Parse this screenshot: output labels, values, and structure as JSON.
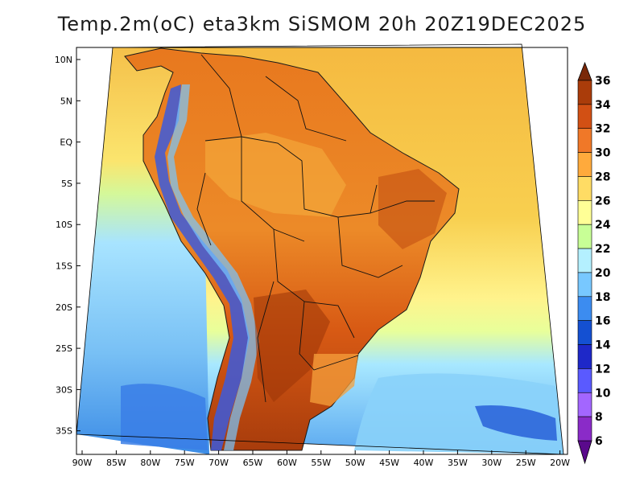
{
  "title": "Temp.2m(oC) eta3km SiSMOM 20h 20Z19DEC2025",
  "lat_labels": [
    "10N",
    "5N",
    "EQ",
    "5S",
    "10S",
    "15S",
    "20S",
    "25S",
    "30S",
    "35S"
  ],
  "lon_labels": [
    "90W",
    "85W",
    "80W",
    "75W",
    "70W",
    "65W",
    "60W",
    "55W",
    "50W",
    "45W",
    "40W",
    "35W",
    "30W",
    "25W",
    "20W"
  ],
  "colorbar": {
    "labels": [
      "6",
      "8",
      "10",
      "12",
      "14",
      "16",
      "18",
      "20",
      "22",
      "24",
      "26",
      "28",
      "30",
      "32",
      "34",
      "36"
    ],
    "colors": [
      "#5a0a8c",
      "#8a2bc8",
      "#a366ff",
      "#5a5aff",
      "#1e28c8",
      "#1450d2",
      "#3c8cf0",
      "#78c8ff",
      "#b4f0ff",
      "#c8ff96",
      "#ffff96",
      "#ffdc64",
      "#ffaa3c",
      "#f07828",
      "#d25014",
      "#aa3c0a",
      "#7a2808"
    ]
  },
  "legend_colors": {
    "ocean_north": "#f5b940",
    "ocean_south": "#78c8f0",
    "land_hot": "#e0641e",
    "andes_cold": "#3c5adc"
  }
}
